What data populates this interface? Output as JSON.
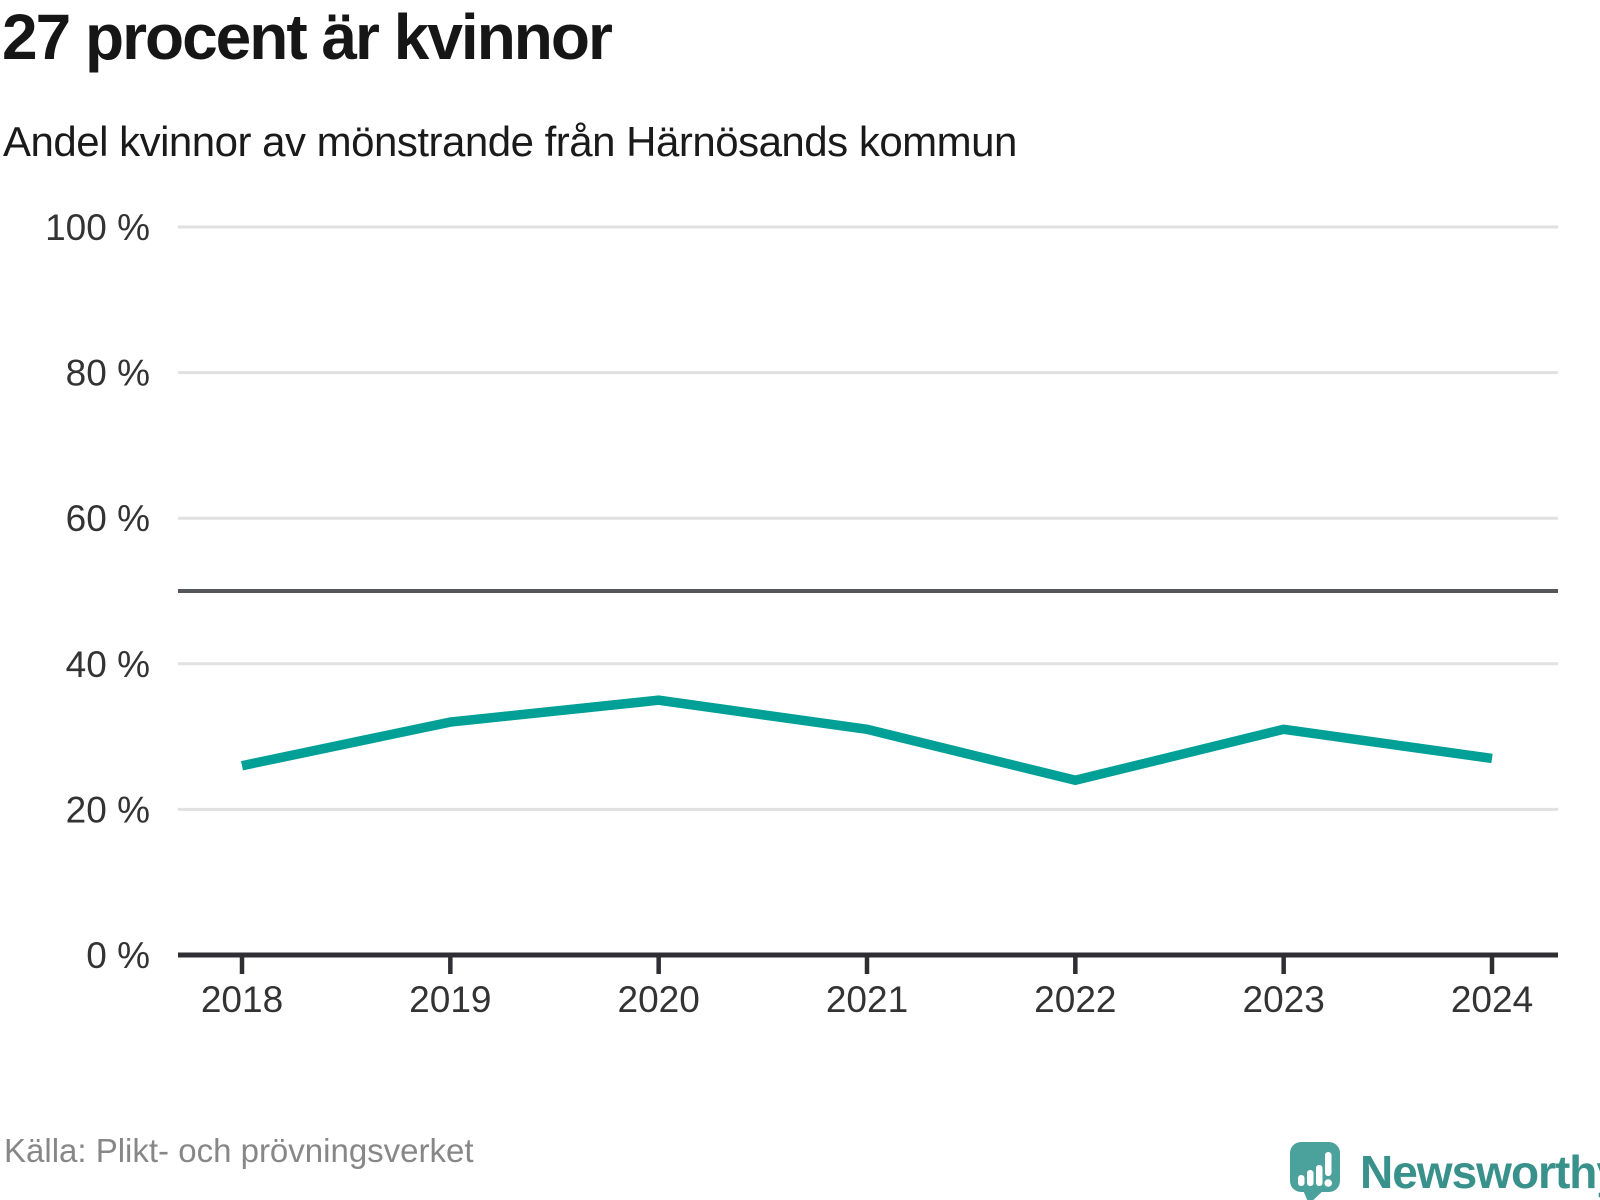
{
  "title": "27 procent är kvinnor",
  "subtitle": "Andel kvinnor av mönstrande från Härnösands kommun",
  "source": "Källa: Plikt- och prövningsverket",
  "brand": {
    "name": "Newsworthy",
    "icon_color": "#4BA29C",
    "text_color": "#38918B"
  },
  "colors": {
    "line": "#00A096",
    "grid": "#E1E1E1",
    "reference_line": "#55565A",
    "axis": "#2F2F33",
    "tick_label": "#333333",
    "source_text": "#878787"
  },
  "chart_data": {
    "type": "line",
    "title": "27 procent är kvinnor",
    "subtitle": "Andel kvinnor av mönstrande från Härnösands kommun",
    "x": [
      2018,
      2019,
      2020,
      2021,
      2022,
      2023,
      2024
    ],
    "x_tick_labels": [
      "2018",
      "2019",
      "2020",
      "2021",
      "2022",
      "2023",
      "2024"
    ],
    "series": [
      {
        "name": "Andel kvinnor av mönstrande",
        "values": [
          26,
          32,
          35,
          31,
          24,
          31,
          27
        ],
        "color": "#00A096"
      }
    ],
    "unit": "%",
    "ylim": [
      0,
      100
    ],
    "y_ticks": [
      0,
      20,
      40,
      60,
      80,
      100
    ],
    "y_tick_labels": [
      "0 %",
      "20 %",
      "40 %",
      "60 %",
      "80 %",
      "100 %"
    ],
    "reference_line": 50,
    "grid": true,
    "legend": false
  }
}
